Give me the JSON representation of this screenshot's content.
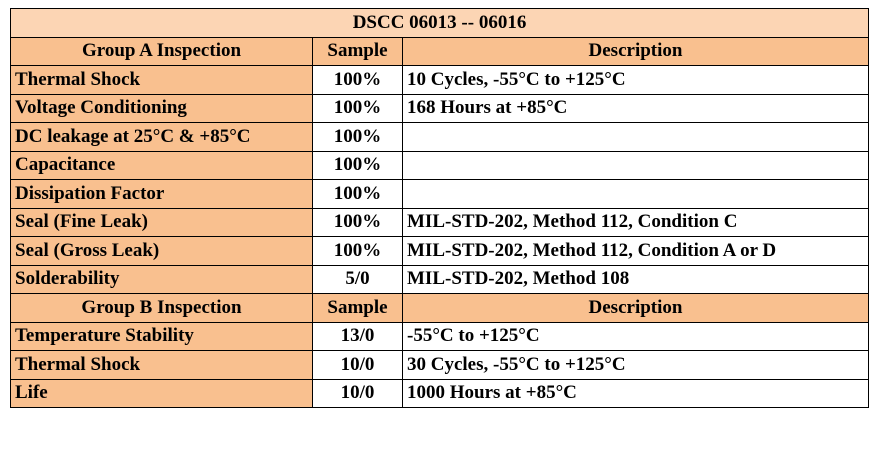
{
  "title": "DSCC 06013 -- 06016",
  "sections": [
    {
      "header": [
        "Group A Inspection",
        "Sample",
        "Description"
      ],
      "rows": [
        {
          "test": "Thermal Shock",
          "sample": "100%",
          "description": "10 Cycles, -55°C to +125°C"
        },
        {
          "test": "Voltage Conditioning",
          "sample": "100%",
          "description": "168 Hours at +85°C"
        },
        {
          "test": "DC leakage at 25°C & +85°C",
          "sample": "100%"
        },
        {
          "test": "Capacitance",
          "sample": "100%"
        },
        {
          "test": "Dissipation Factor",
          "sample": "100%"
        },
        {
          "test": "Seal (Fine Leak)",
          "sample": "100%",
          "description": "MIL-STD-202, Method 112, Condition C"
        },
        {
          "test": "Seal (Gross Leak)",
          "sample": "100%",
          "description": "MIL-STD-202, Method 112, Condition A or D"
        },
        {
          "test": "Solderability",
          "sample": "5/0",
          "description": "MIL-STD-202, Method 108"
        }
      ]
    },
    {
      "header": [
        "Group B Inspection",
        "Sample",
        "Description"
      ],
      "rows": [
        {
          "test": "Temperature Stability",
          "sample": "13/0",
          "description": "-55°C to +125°C"
        },
        {
          "test": "Thermal Shock",
          "sample": "10/0",
          "description": "30 Cycles, -55°C to +125°C"
        },
        {
          "test": "Life",
          "sample": "10/0",
          "description": "1000 Hours at +85°C"
        }
      ]
    }
  ]
}
